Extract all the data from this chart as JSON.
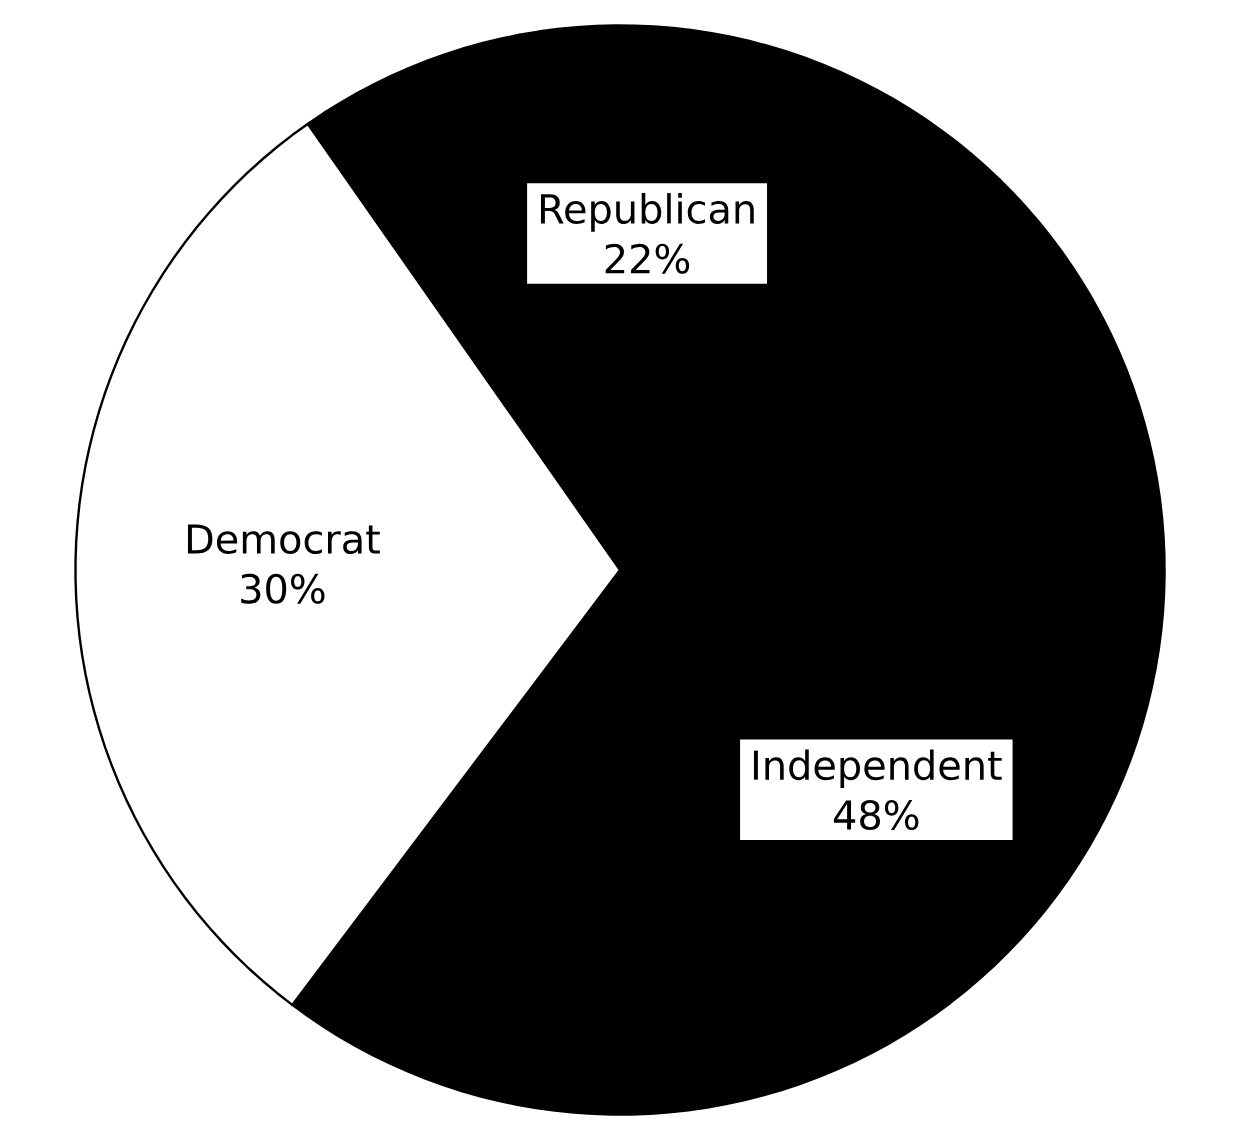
{
  "chart_data": {
    "type": "pie",
    "categories": [
      "Republican",
      "Independent",
      "Democrat"
    ],
    "values": [
      22,
      48,
      30
    ],
    "value_labels": [
      "22%",
      "48%",
      "30%"
    ],
    "colors": [
      "#000000",
      "#000000",
      "#ffffff"
    ]
  }
}
